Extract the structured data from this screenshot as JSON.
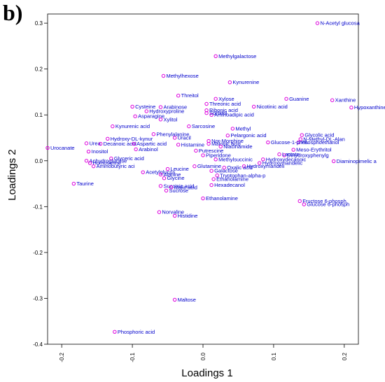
{
  "panel_label": "b)",
  "chart_data": {
    "type": "scatter",
    "xlabel": "Loadings 1",
    "ylabel": "Loadings 2",
    "xlim": [
      -0.22,
      0.22
    ],
    "ylim": [
      -0.4,
      0.32
    ],
    "xticks": [
      -0.2,
      -0.1,
      0.0,
      0.1,
      0.2
    ],
    "xtick_labels": [
      "-0.2",
      "-0.1",
      "0.0",
      "0.1",
      "0.2"
    ],
    "yticks": [
      -0.4,
      -0.3,
      -0.2,
      -0.1,
      0.0,
      0.1,
      0.2,
      0.3
    ],
    "ytick_labels": [
      "-0.4",
      "-0.3",
      "-0.2",
      "-0.1",
      "0.0",
      "0.1",
      "0.2",
      "0.3"
    ],
    "grid": false,
    "marker_color": "#dd00dd",
    "label_color": "#0000cc",
    "points": [
      {
        "label": "N-Acetyl glucosa",
        "x": 0.162,
        "y": 0.3
      },
      {
        "label": "Methylgalactose",
        "x": 0.018,
        "y": 0.228
      },
      {
        "label": "Kynurenine",
        "x": 0.038,
        "y": 0.171
      },
      {
        "label": "Methylhexose",
        "x": -0.056,
        "y": 0.185
      },
      {
        "label": "Threitol",
        "x": -0.035,
        "y": 0.142
      },
      {
        "label": "Xylose",
        "x": 0.018,
        "y": 0.135
      },
      {
        "label": "Threonic acid",
        "x": 0.005,
        "y": 0.124
      },
      {
        "label": "Guanine",
        "x": 0.118,
        "y": 0.135
      },
      {
        "label": "Xanthine",
        "x": 0.183,
        "y": 0.132
      },
      {
        "label": "Hypoxanthine",
        "x": 0.21,
        "y": 0.116
      },
      {
        "label": "Nicotinic acid",
        "x": 0.072,
        "y": 0.118
      },
      {
        "label": "Ribonic acid",
        "x": 0.005,
        "y": 0.11
      },
      {
        "label": "Aminoadipic acid",
        "x": 0.012,
        "y": 0.1
      },
      {
        "label": "Sorbitol",
        "x": 0.005,
        "y": 0.104
      },
      {
        "label": "Arabinose",
        "x": -0.06,
        "y": 0.117
      },
      {
        "label": "Cysteine",
        "x": -0.1,
        "y": 0.118
      },
      {
        "label": "Hydroxyproline",
        "x": -0.08,
        "y": 0.108
      },
      {
        "label": "Asparagine",
        "x": -0.096,
        "y": 0.097
      },
      {
        "label": "Xylitol",
        "x": -0.06,
        "y": 0.09
      },
      {
        "label": "Kynurenic acid",
        "x": -0.128,
        "y": 0.075
      },
      {
        "label": "Sarcosine",
        "x": -0.02,
        "y": 0.075
      },
      {
        "label": "Methyl",
        "x": 0.042,
        "y": 0.07
      },
      {
        "label": "Phenylalanine",
        "x": -0.07,
        "y": 0.058
      },
      {
        "label": "Uracil",
        "x": -0.04,
        "y": 0.05
      },
      {
        "label": "Glycolic acid",
        "x": 0.14,
        "y": 0.056
      },
      {
        "label": "N-Methyl-DL-Alan",
        "x": 0.138,
        "y": 0.047
      },
      {
        "label": "Phosphoethanol",
        "x": 0.135,
        "y": 0.04
      },
      {
        "label": "Pelargonic acid",
        "x": 0.035,
        "y": 0.055
      },
      {
        "label": "Glucose-1-phos",
        "x": 0.092,
        "y": 0.04
      },
      {
        "label": "Hydroxy-DL-kynur",
        "x": -0.135,
        "y": 0.048
      },
      {
        "label": "Urea",
        "x": -0.165,
        "y": 0.038
      },
      {
        "label": "Decanoic acid",
        "x": -0.145,
        "y": 0.037
      },
      {
        "label": "Aspartic acid",
        "x": -0.098,
        "y": 0.037
      },
      {
        "label": "Histamine",
        "x": -0.035,
        "y": 0.035
      },
      {
        "label": "Malonic acid",
        "x": 0.008,
        "y": 0.037
      },
      {
        "label": "Niacinamide",
        "x": 0.025,
        "y": 0.031
      },
      {
        "label": "Nor-Morphine",
        "x": 0.008,
        "y": 0.043
      },
      {
        "label": "Urocanate",
        "x": -0.22,
        "y": 0.028
      },
      {
        "label": "Inositol",
        "x": -0.162,
        "y": 0.02
      },
      {
        "label": "Meso-Erythritol",
        "x": 0.128,
        "y": 0.024
      },
      {
        "label": "Dihydroxyphenylg",
        "x": 0.115,
        "y": 0.012
      },
      {
        "label": "Lactate",
        "x": 0.108,
        "y": 0.014
      },
      {
        "label": "Diaminopimelic a",
        "x": 0.185,
        "y": -0.001
      },
      {
        "label": "Arabinol",
        "x": -0.095,
        "y": 0.025
      },
      {
        "label": "Putrescine",
        "x": -0.01,
        "y": 0.022
      },
      {
        "label": "Piperidone",
        "x": 0.0,
        "y": 0.012
      },
      {
        "label": "Glyceric acid",
        "x": -0.13,
        "y": 0.005
      },
      {
        "label": "Methylsuccinic",
        "x": 0.018,
        "y": 0.003
      },
      {
        "label": "Hydroxydecanoic",
        "x": 0.085,
        "y": 0.003
      },
      {
        "label": "Hydroxymandelic",
        "x": 0.08,
        "y": -0.005
      },
      {
        "label": "Anhydroglucose",
        "x": -0.165,
        "y": 0.0
      },
      {
        "label": "Homoserine",
        "x": -0.16,
        "y": -0.005
      },
      {
        "label": "Aminobutyric aci",
        "x": -0.155,
        "y": -0.012
      },
      {
        "label": "Glutamine",
        "x": -0.012,
        "y": -0.012
      },
      {
        "label": "Hydroxymandeli",
        "x": 0.058,
        "y": -0.012
      },
      {
        "label": "Oxalic acid",
        "x": 0.03,
        "y": -0.015
      },
      {
        "label": "Leucine",
        "x": -0.05,
        "y": -0.018
      },
      {
        "label": "Acetylglucos",
        "x": -0.085,
        "y": -0.025
      },
      {
        "label": "Alanine",
        "x": -0.06,
        "y": -0.03
      },
      {
        "label": "Galactose",
        "x": 0.012,
        "y": -0.022
      },
      {
        "label": "Tryptophan-alpha-p",
        "x": 0.02,
        "y": -0.032
      },
      {
        "label": "Ethanolamine",
        "x": 0.015,
        "y": -0.04
      },
      {
        "label": "Glycine",
        "x": -0.055,
        "y": -0.038
      },
      {
        "label": "Hexadecanol",
        "x": 0.012,
        "y": -0.053
      },
      {
        "label": "Succinic acid",
        "x": -0.06,
        "y": -0.055
      },
      {
        "label": "Malic acid",
        "x": -0.045,
        "y": -0.058
      },
      {
        "label": "Sucrose",
        "x": -0.052,
        "y": -0.065
      },
      {
        "label": "Taurine",
        "x": -0.183,
        "y": -0.05
      },
      {
        "label": "Ethanolamine",
        "x": 0.0,
        "y": -0.082
      },
      {
        "label": "Fructose 6-phosph",
        "x": 0.137,
        "y": -0.088
      },
      {
        "label": "Glucose 6-phosph",
        "x": 0.143,
        "y": -0.095
      },
      {
        "label": "Norvaline",
        "x": -0.062,
        "y": -0.112
      },
      {
        "label": "Histidine",
        "x": -0.04,
        "y": -0.12
      },
      {
        "label": "Maltose",
        "x": -0.04,
        "y": -0.303
      },
      {
        "label": "Phosphoric acid",
        "x": -0.125,
        "y": -0.373
      }
    ]
  }
}
